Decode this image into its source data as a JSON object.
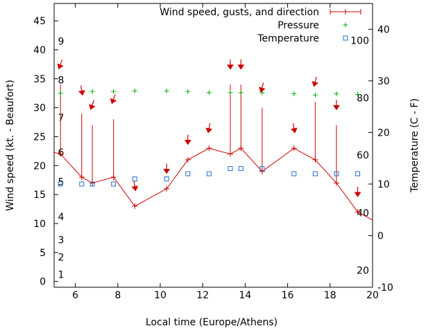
{
  "chart_data": {
    "type": "line",
    "xlabel": "Local time (Europe/Athens)",
    "ylabel": "Wind speed (kt. - Beaufort)",
    "y2label": "Temperature (C - F)",
    "xlim": [
      5,
      20
    ],
    "ylim": [
      -1,
      48
    ],
    "y2lim": [
      -10,
      45
    ],
    "x_ticks": [
      "6",
      "8",
      "10",
      "12",
      "14",
      "16",
      "18",
      "20"
    ],
    "y_ticks": [
      "0",
      "5",
      "10",
      "15",
      "20",
      "25",
      "30",
      "35",
      "40",
      "45"
    ],
    "y2_ticks": [
      "-10",
      "0",
      "10",
      "20",
      "30",
      "40"
    ],
    "beaufort_labels": [
      {
        "label": "1",
        "y": 1.2
      },
      {
        "label": "2",
        "y": 4.2
      },
      {
        "label": "3",
        "y": 7.2
      },
      {
        "label": "4",
        "y": 11.2
      },
      {
        "label": "5",
        "y": 17.2
      },
      {
        "label": "6",
        "y": 22.3
      },
      {
        "label": "7",
        "y": 28.3
      },
      {
        "label": "8",
        "y": 34.8
      },
      {
        "label": "9",
        "y": 41.5
      }
    ],
    "fahrenheit_labels": [
      {
        "label": "20",
        "temp": -6.7
      },
      {
        "label": "40",
        "temp": 4.4
      },
      {
        "label": "60",
        "temp": 15.6
      },
      {
        "label": "80",
        "temp": 26.7
      },
      {
        "label": "100",
        "temp": 37.8
      }
    ],
    "legend_position": "top-right",
    "series": [
      {
        "name": "Wind speed, gusts, and direction",
        "color": "#cc0000",
        "x": [
          4.8,
          5.3,
          6.3,
          6.8,
          7.8,
          8.8,
          10.3,
          11.3,
          12.3,
          13.3,
          13.8,
          14.8,
          16.3,
          17.3,
          18.3,
          19.3,
          20.3
        ],
        "y": [
          22.5,
          22,
          18,
          17,
          18,
          13,
          16,
          21,
          23,
          22,
          23,
          19,
          23,
          21,
          17,
          12,
          10
        ],
        "gusts": [
          null,
          34,
          29,
          27,
          28,
          null,
          null,
          null,
          null,
          34,
          34,
          30,
          null,
          31,
          27,
          null,
          null
        ]
      },
      {
        "name": "Pressure",
        "color": "#00aa00",
        "x": [
          5.3,
          6.3,
          6.8,
          7.8,
          8.8,
          10.3,
          11.3,
          12.3,
          13.3,
          13.8,
          14.8,
          16.3,
          17.3,
          18.3,
          19.3
        ],
        "y": [
          32.5,
          32.7,
          32.8,
          32.8,
          32.9,
          32.9,
          32.8,
          32.6,
          32.6,
          32.6,
          32.6,
          32.4,
          32.2,
          32.4,
          32.3
        ]
      },
      {
        "name": "Temperature",
        "color": "#1f6fcf",
        "x": [
          5.3,
          6.3,
          6.8,
          7.8,
          8.8,
          10.3,
          11.3,
          12.3,
          13.3,
          13.8,
          14.8,
          16.3,
          17.3,
          18.3,
          19.3
        ],
        "temp": [
          10,
          10,
          10,
          10,
          11,
          11,
          12,
          12,
          13,
          13,
          13,
          12,
          12,
          12,
          12
        ]
      }
    ],
    "direction_arrows": {
      "color": "#cc0000",
      "points": [
        {
          "x": 5.3,
          "y": 37.5,
          "angle": 200
        },
        {
          "x": 6.3,
          "y": 33.0,
          "angle": 170
        },
        {
          "x": 6.8,
          "y": 30.5,
          "angle": 200
        },
        {
          "x": 7.8,
          "y": 31.5,
          "angle": 200
        },
        {
          "x": 8.8,
          "y": 16.5,
          "angle": 170
        },
        {
          "x": 10.3,
          "y": 19.5,
          "angle": 180
        },
        {
          "x": 11.3,
          "y": 24.5,
          "angle": 180
        },
        {
          "x": 12.3,
          "y": 26.5,
          "angle": 190
        },
        {
          "x": 13.3,
          "y": 37.5,
          "angle": 180
        },
        {
          "x": 13.8,
          "y": 37.5,
          "angle": 180
        },
        {
          "x": 14.8,
          "y": 33.5,
          "angle": 195
        },
        {
          "x": 16.3,
          "y": 26.5,
          "angle": 170
        },
        {
          "x": 17.3,
          "y": 34.5,
          "angle": 195
        },
        {
          "x": 18.3,
          "y": 30.5,
          "angle": 180
        },
        {
          "x": 19.3,
          "y": 15.5,
          "angle": 180
        }
      ]
    }
  }
}
